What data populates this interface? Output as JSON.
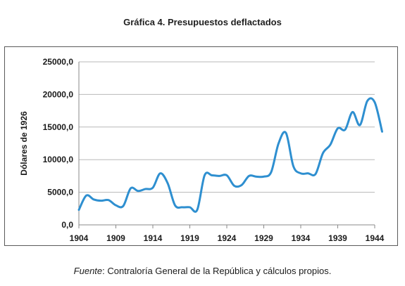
{
  "chart_data": {
    "type": "line",
    "title": "Gráfica 4. Presupuestos deflactados",
    "xlabel": "",
    "ylabel": "Dólares de 1926",
    "xlim": [
      1904,
      1944
    ],
    "ylim": [
      0,
      25000
    ],
    "xticks": [
      1904,
      1909,
      1914,
      1919,
      1924,
      1929,
      1934,
      1939,
      1944
    ],
    "xtick_labels": [
      "1904",
      "1909",
      "1914",
      "1919",
      "1924",
      "1929",
      "1934",
      "1939",
      "1944"
    ],
    "yticks": [
      0,
      5000,
      10000,
      15000,
      20000,
      25000
    ],
    "ytick_labels": [
      "0,0",
      "5000,0",
      "10000,0",
      "15000,0",
      "20000,0",
      "25000,0"
    ],
    "grid": true,
    "legend": "none",
    "series": [
      {
        "color": "#2e8fd0",
        "x": [
          1904,
          1905,
          1906,
          1907,
          1908,
          1909,
          1910,
          1911,
          1912,
          1913,
          1914,
          1915,
          1916,
          1917,
          1918,
          1919,
          1920,
          1921,
          1922,
          1923,
          1924,
          1925,
          1926,
          1927,
          1928,
          1929,
          1930,
          1931,
          1932,
          1933,
          1934,
          1935,
          1936,
          1937,
          1938,
          1939,
          1940,
          1941,
          1942,
          1943,
          1944,
          1945
        ],
        "values": [
          2300,
          4500,
          3900,
          3700,
          3800,
          3000,
          2900,
          5600,
          5200,
          5500,
          5700,
          7900,
          6400,
          3000,
          2700,
          2700,
          2300,
          7600,
          7600,
          7500,
          7600,
          6000,
          6100,
          7500,
          7400,
          7400,
          8100,
          12500,
          14100,
          9000,
          7900,
          7900,
          7800,
          11000,
          12300,
          14800,
          14600,
          17300,
          15300,
          19000,
          18800,
          14300
        ]
      }
    ]
  },
  "source_note": {
    "label": "Fuente",
    "text": ": Contraloría General de la República y cálculos propios."
  }
}
